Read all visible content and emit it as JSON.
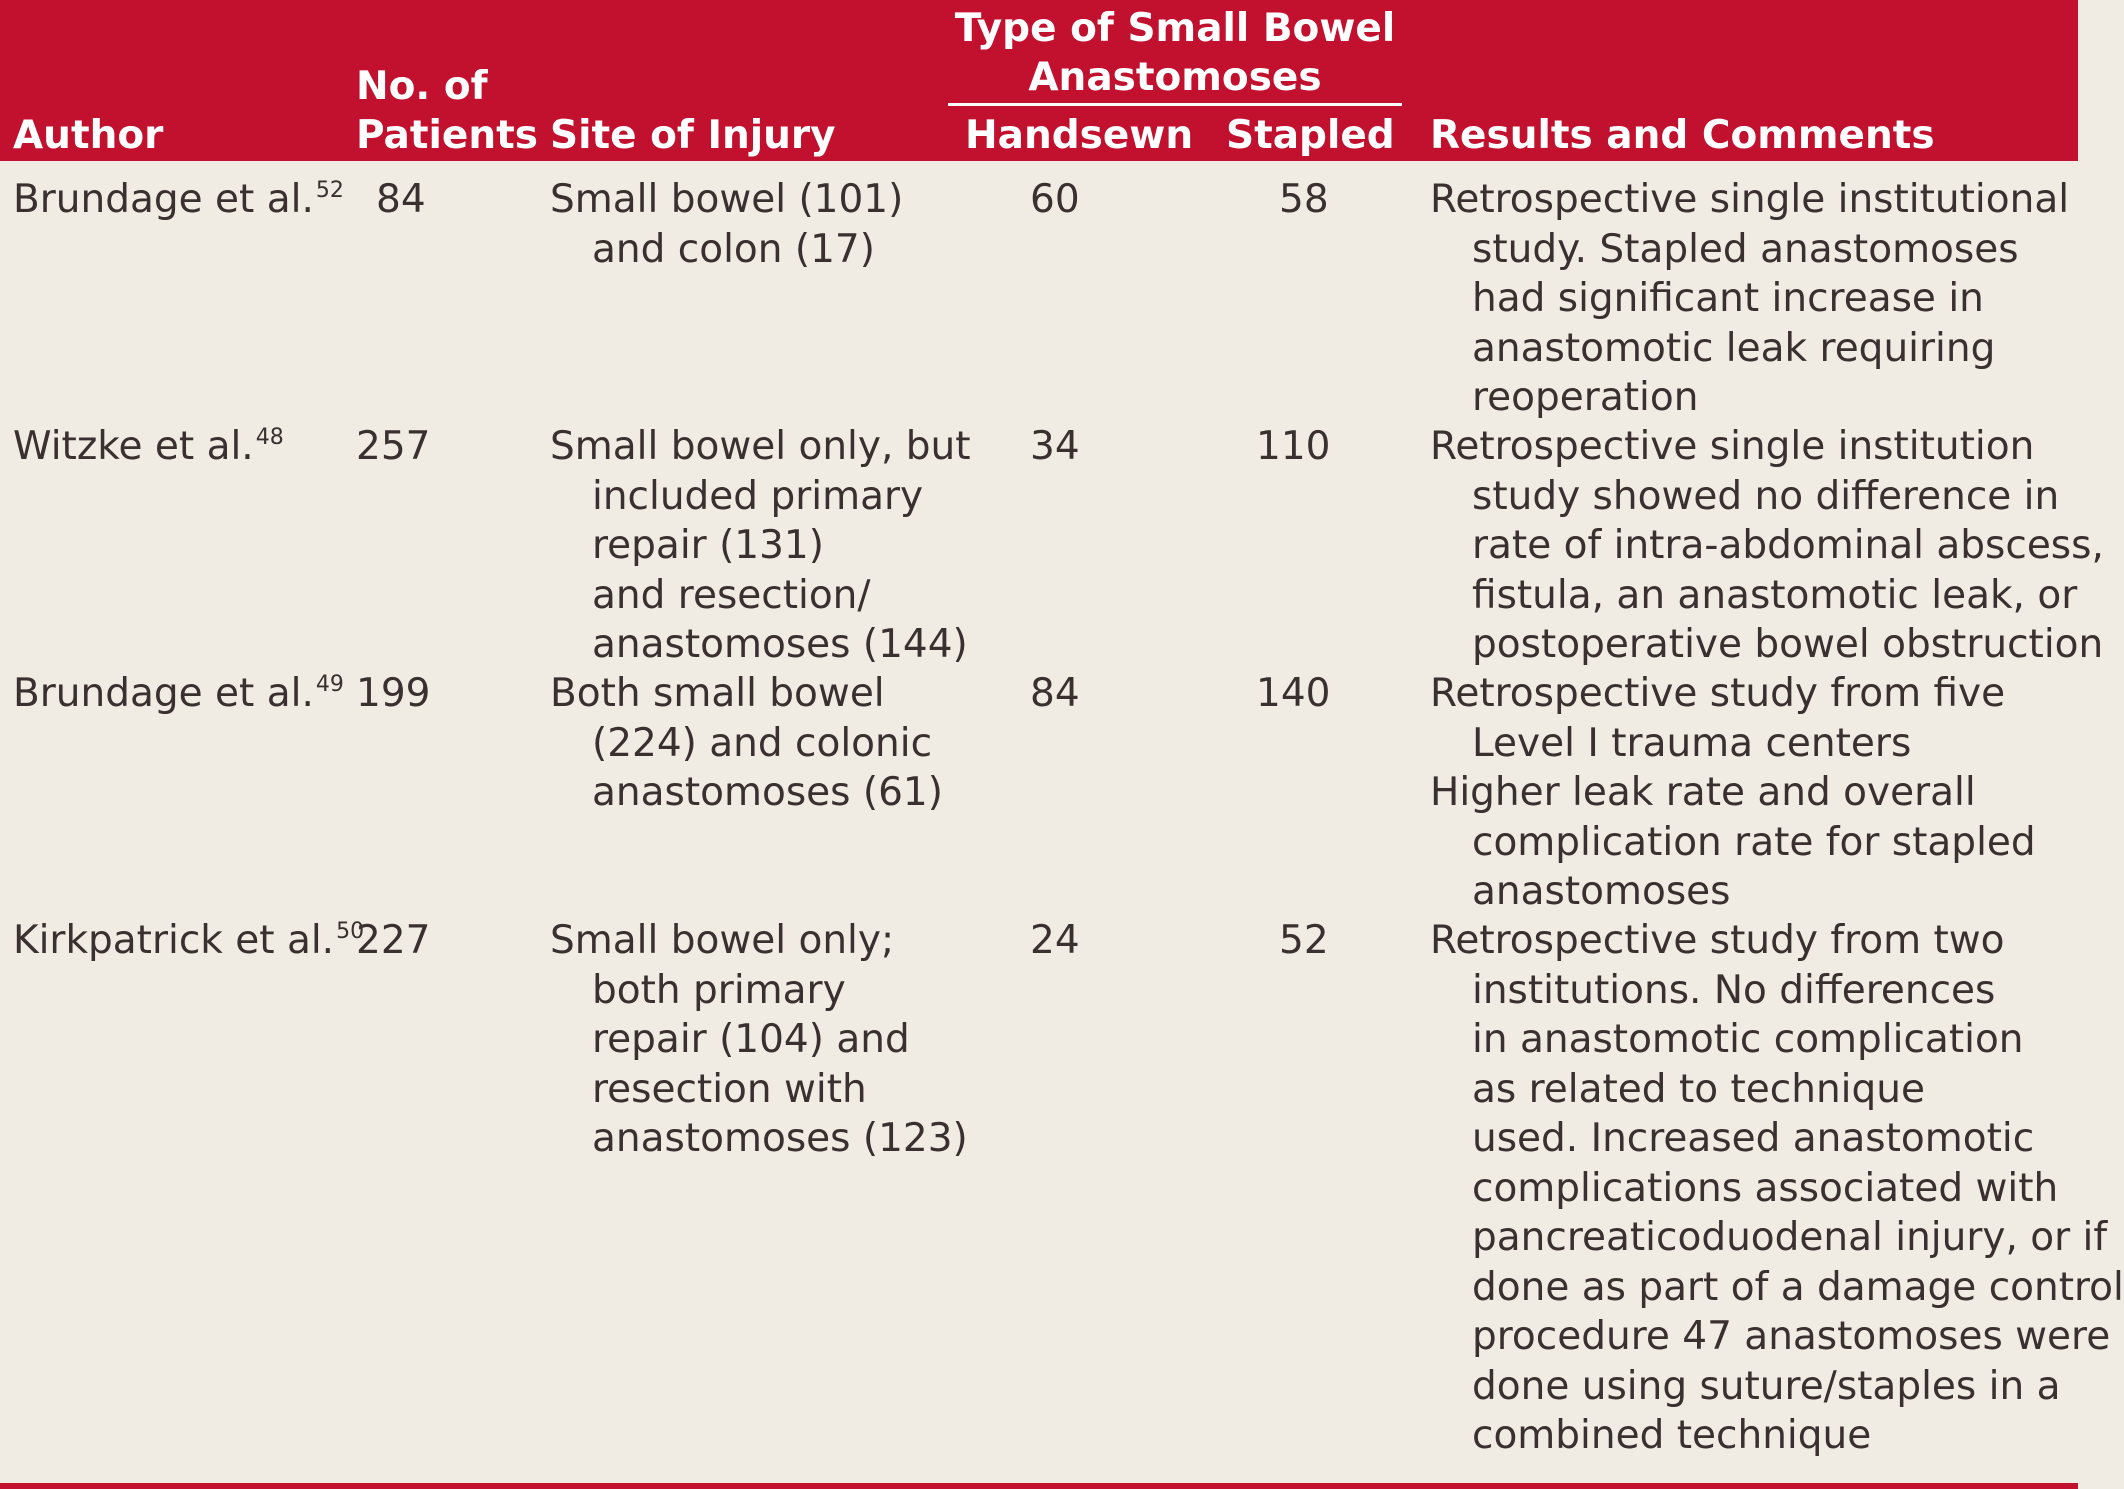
{
  "header": {
    "author": "Author",
    "patients_line1": "No. of",
    "patients_line2": "Patients",
    "site": "Site of Injury",
    "type_line1": "Type of Small Bowel",
    "type_line2": "Anastomoses",
    "handsewn": "Handsewn",
    "stapled": "Stapled",
    "results": "Results and Comments"
  },
  "rows": [
    {
      "author": "Brundage et al.",
      "ref": "52",
      "patients": "84",
      "site": [
        "Small bowel (101)",
        "and colon (17)"
      ],
      "handsewn": "60",
      "stapled": "58",
      "results": [
        [
          "Retrospective single institutional",
          "study. Stapled anastomoses",
          "had significant increase in",
          "anastomotic leak requiring",
          "reoperation"
        ]
      ]
    },
    {
      "author": "Witzke et al.",
      "ref": "48",
      "patients": "257",
      "site": [
        "Small bowel only, but",
        "included primary",
        "repair (131)",
        "and resection/",
        "anastomoses (144)"
      ],
      "handsewn": "34",
      "stapled": "110",
      "results": [
        [
          "Retrospective single institution",
          "study showed no difference in",
          "rate of intra-abdominal abscess,",
          "fistula, an anastomotic leak, or",
          "postoperative bowel obstruction"
        ]
      ]
    },
    {
      "author": "Brundage et al.",
      "ref": "49",
      "patients": "199",
      "site": [
        "Both small bowel",
        "(224) and colonic",
        "anastomoses (61)"
      ],
      "handsewn": "84",
      "stapled": "140",
      "results": [
        [
          "Retrospective study from five",
          "Level I trauma centers"
        ],
        [
          "Higher leak rate and overall",
          "complication rate for stapled",
          "anastomoses"
        ]
      ]
    },
    {
      "author": "Kirkpatrick et al.",
      "ref": "50",
      "patients": "227",
      "site": [
        "Small bowel only;",
        "both primary",
        "repair (104) and",
        "resection with",
        "anastomoses (123)"
      ],
      "handsewn": "24",
      "stapled": "52",
      "results": [
        [
          "Retrospective study from two",
          "institutions. No differences",
          "in anastomotic complication",
          "as related to technique",
          "used. Increased anastomotic",
          "complications associated with",
          "pancreaticoduodenal injury, or if",
          "done as part of a damage control",
          "procedure 47 anastomoses were",
          "done using suture/staples in a",
          "combined technique"
        ]
      ]
    }
  ]
}
